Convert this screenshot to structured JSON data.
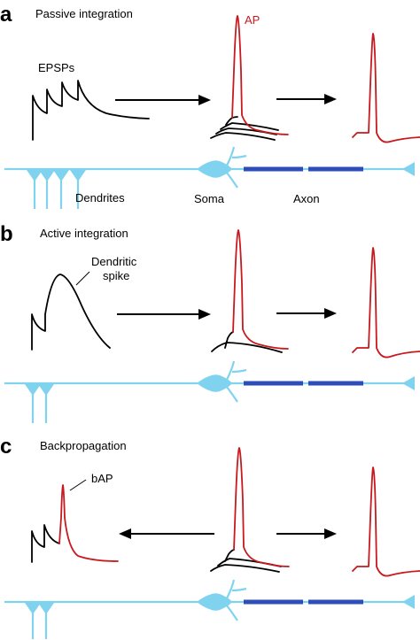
{
  "panels": [
    {
      "letter": "a",
      "title": "Passive integration",
      "labels": {
        "epsps": "EPSPs",
        "ap": "AP",
        "dendrites": "Dendrites",
        "soma": "Soma",
        "axon": "Axon"
      }
    },
    {
      "letter": "b",
      "title": "Active integration",
      "labels": {
        "dendritic_spike_line1": "Dendritic",
        "dendritic_spike_line2": "spike"
      }
    },
    {
      "letter": "c",
      "title": "Backpropagation",
      "labels": {
        "bap": "bAP"
      }
    }
  ],
  "colors": {
    "trace_black": "#000000",
    "action_potential_red": "#c8191e",
    "neuron_light_blue": "#7fd3ef",
    "axon_dark_blue": "#2d4eb8"
  }
}
